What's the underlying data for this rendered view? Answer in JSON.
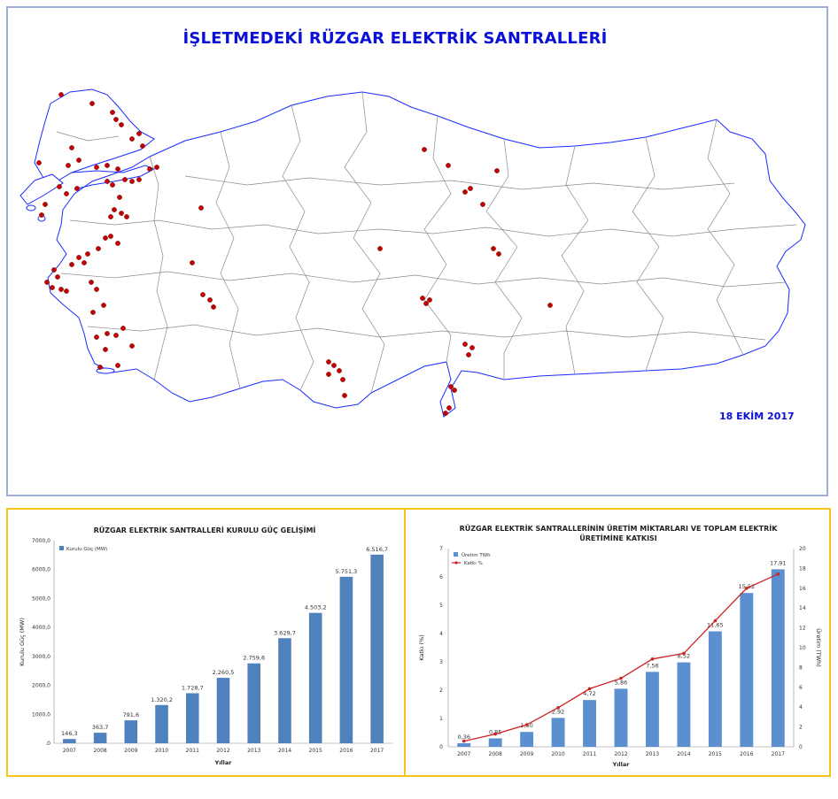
{
  "map": {
    "title": "İŞLETMEDEKİ RÜZGAR ELEKTRİK SANTRALLERİ",
    "date": "18 EKİM 2017",
    "plant_color": "#cc0000",
    "coast_color": "#1a2bff",
    "border_color": "#8a8a8a"
  },
  "chart_data": [
    {
      "type": "bar",
      "title": "RÜZGAR ELEKTRİK SANTRALLERİ KURULU GÜÇ GELİŞİMİ",
      "xlabel": "Yıllar",
      "ylabel": "Kurulu Güç (MW)",
      "categories": [
        "2007",
        "2008",
        "2009",
        "2010",
        "2011",
        "2012",
        "2013",
        "2014",
        "2015",
        "2016",
        "2017"
      ],
      "series": [
        {
          "name": "Kurulu Güç (MW)",
          "values": [
            146.3,
            363.7,
            791.6,
            1320.2,
            1728.7,
            2260.5,
            2759.6,
            3629.7,
            4503.2,
            5751.3,
            6516.7
          ],
          "labels": [
            "146,3",
            "363,7",
            "791,6",
            "1.320,2",
            "1.728,7",
            "2.260,5",
            "2.759,6",
            "3.629,7",
            "4.503,2",
            "5.751,3",
            "6.516,7"
          ]
        }
      ],
      "yticks": [
        ".0",
        "1000,0",
        "2000,0",
        "3000,0",
        "4000,0",
        "5000,0",
        "6000,0",
        "7000,0"
      ],
      "ylim": [
        0,
        7000
      ],
      "bar_color": "#4f81bd"
    },
    {
      "type": "bar+line",
      "title_line1": "RÜZGAR ELEKTRİK SANTRALLERİNİN ÜRETİM MİKTARLARI VE TOPLAM ELEKTRİK",
      "title_line2": "ÜRETİMİNE KATKISI",
      "xlabel": "Yıllar",
      "ylabel_left": "Katkı (%)",
      "ylabel_right": "Üretim (TWh)",
      "categories": [
        "2007",
        "2008",
        "2009",
        "2010",
        "2011",
        "2012",
        "2013",
        "2014",
        "2015",
        "2016",
        "2017"
      ],
      "series": [
        {
          "name": "Üretim TWh",
          "type": "bar",
          "axis": "right",
          "values": [
            0.36,
            0.85,
            1.5,
            2.92,
            4.72,
            5.86,
            7.56,
            8.52,
            11.65,
            15.52,
            17.91
          ],
          "labels": [
            "0,36",
            "0,85",
            "1,50",
            "2,92",
            "4,72",
            "5,86",
            "7,56",
            "8,52",
            "11,65",
            "15,52",
            "17,91"
          ]
        },
        {
          "name": "Katkı %",
          "type": "line",
          "axis": "left",
          "values": [
            0.2,
            0.45,
            0.78,
            1.38,
            2.05,
            2.42,
            3.1,
            3.3,
            4.45,
            5.6,
            6.1
          ]
        }
      ],
      "yticks_left": [
        "0",
        "1",
        "2",
        "3",
        "4",
        "5",
        "6",
        "7"
      ],
      "yticks_right": [
        "0",
        "2",
        "4",
        "6",
        "8",
        "10",
        "12",
        "14",
        "16",
        "18",
        "20"
      ],
      "ylim_left": [
        0,
        7
      ],
      "ylim_right": [
        0,
        20
      ],
      "bar_color": "#5b8fd0",
      "line_color": "#cc2222"
    }
  ]
}
